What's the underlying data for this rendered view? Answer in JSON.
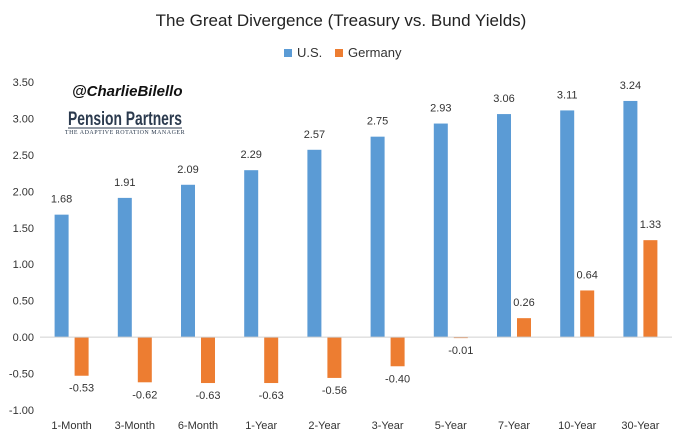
{
  "chart_data": {
    "type": "bar",
    "title": "The Great Divergence (Treasury vs. Bund Yields)",
    "categories": [
      "1-Month",
      "3-Month",
      "6-Month",
      "1-Year",
      "2-Year",
      "3-Year",
      "5-Year",
      "7-Year",
      "10-Year",
      "30-Year"
    ],
    "series": [
      {
        "name": "U.S.",
        "color": "#5b9bd5",
        "values": [
          1.68,
          1.91,
          2.09,
          2.29,
          2.57,
          2.75,
          2.93,
          3.06,
          3.11,
          3.24
        ],
        "labels": [
          "1.68",
          "1.91",
          "2.09",
          "2.29",
          "2.57",
          "2.75",
          "2.93",
          "3.06",
          "3.11",
          "3.24"
        ]
      },
      {
        "name": "Germany",
        "color": "#ed7d31",
        "values": [
          -0.53,
          -0.62,
          -0.63,
          -0.63,
          -0.56,
          -0.4,
          -0.01,
          0.26,
          0.64,
          1.33
        ],
        "labels": [
          "-0.53",
          "-0.62",
          "-0.63",
          "-0.63",
          "-0.56",
          "-0.40",
          "-0.01",
          "0.26",
          "0.64",
          "1.33"
        ]
      }
    ],
    "ylim": [
      -1.0,
      3.5
    ],
    "yticks": [
      3.5,
      3.0,
      2.5,
      2.0,
      1.5,
      1.0,
      0.5,
      0.0,
      -0.5,
      -1.0
    ],
    "ytick_labels": [
      "3.50",
      "3.00",
      "2.50",
      "2.00",
      "1.50",
      "1.00",
      "0.50",
      "0.00",
      "-0.50",
      "-1.00"
    ],
    "grid": false,
    "legend_position": "top-center",
    "xlabel": "",
    "ylabel": ""
  },
  "watermark": {
    "handle": "@CharlieBilello",
    "logo_text": "Pension Partners",
    "logo_tagline": "THE ADAPTIVE ROTATION MANAGER"
  }
}
